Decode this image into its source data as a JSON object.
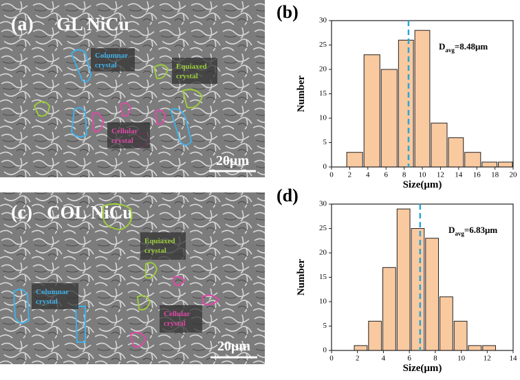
{
  "images": [
    {
      "panel": "(a)",
      "title": "GL NiCu",
      "labels": [
        [
          "Columnar",
          "crystal"
        ],
        [
          "Equiaxed",
          "crystal"
        ],
        [
          "Cellular",
          "crystal"
        ]
      ],
      "scale_bar": "20μm"
    },
    {
      "panel": "(c)",
      "title": "COL NiCu",
      "labels": [
        [
          "Equiaxed",
          "crystal"
        ],
        [
          "Columnar",
          "crystal"
        ],
        [
          "Cellular",
          "crystal"
        ]
      ],
      "scale_bar": "20μm"
    }
  ],
  "chart_data": [
    {
      "type": "histogram",
      "panel": "(b)",
      "xlabel": "Size(μm)",
      "ylabel": "Number",
      "bins": [
        1.6,
        3.5,
        5.4,
        7.3,
        9.1,
        10.9,
        12.8,
        14.6,
        16.5,
        18.3,
        20.0
      ],
      "values": [
        3,
        23,
        20,
        26,
        28,
        9,
        6,
        3,
        1,
        1
      ],
      "color": "#f9c9a0",
      "xlim": [
        0,
        20
      ],
      "xticks": [
        0,
        2,
        4,
        6,
        8,
        10,
        12,
        14,
        16,
        18,
        20
      ],
      "ylim": [
        0,
        30
      ],
      "yticks": [
        0,
        5,
        10,
        15,
        20,
        25,
        30
      ],
      "average": {
        "value": 8.48,
        "symbol": "D",
        "subscript": "avg",
        "text": "=8.48μm",
        "color": "#2aa6d8"
      }
    },
    {
      "type": "histogram",
      "panel": "(d)",
      "xlabel": "Size(μm)",
      "ylabel": "Number",
      "bins": [
        1.7,
        2.8,
        3.9,
        5.0,
        6.1,
        7.2,
        8.3,
        9.4,
        10.5,
        11.6,
        12.7
      ],
      "values": [
        1,
        6,
        17,
        29,
        25,
        23,
        11,
        6,
        1,
        1
      ],
      "color": "#f9c9a0",
      "xlim": [
        0,
        14
      ],
      "xticks": [
        0,
        2,
        4,
        6,
        8,
        10,
        12,
        14
      ],
      "ylim": [
        0,
        30
      ],
      "yticks": [
        0,
        5,
        10,
        15,
        20,
        25,
        30
      ],
      "average": {
        "value": 6.83,
        "symbol": "D",
        "subscript": "avg",
        "text": "=6.83μm",
        "color": "#2aa6d8"
      }
    }
  ]
}
